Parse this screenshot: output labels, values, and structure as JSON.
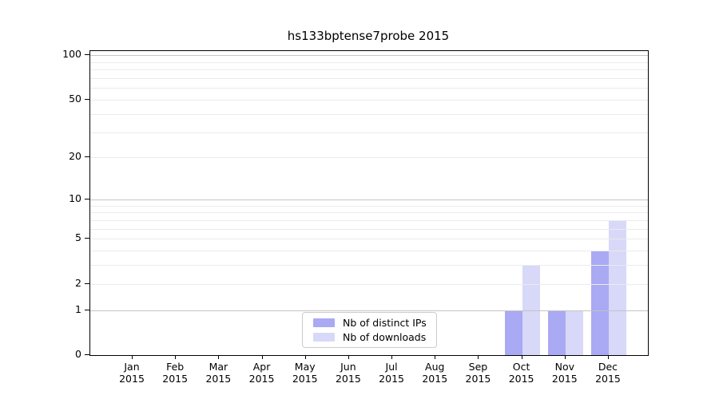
{
  "chart_data": {
    "type": "bar",
    "title": "hs133bptense7probe 2015",
    "categories": [
      {
        "month": "Jan",
        "year": "2015"
      },
      {
        "month": "Feb",
        "year": "2015"
      },
      {
        "month": "Mar",
        "year": "2015"
      },
      {
        "month": "Apr",
        "year": "2015"
      },
      {
        "month": "May",
        "year": "2015"
      },
      {
        "month": "Jun",
        "year": "2015"
      },
      {
        "month": "Jul",
        "year": "2015"
      },
      {
        "month": "Aug",
        "year": "2015"
      },
      {
        "month": "Sep",
        "year": "2015"
      },
      {
        "month": "Oct",
        "year": "2015"
      },
      {
        "month": "Nov",
        "year": "2015"
      },
      {
        "month": "Dec",
        "year": "2015"
      }
    ],
    "series": [
      {
        "name": "Nb of distinct IPs",
        "slug": "distinct-ips",
        "color": "#a9a9f4",
        "values": [
          0,
          0,
          0,
          0,
          0,
          0,
          0,
          0,
          0,
          1,
          1,
          4
        ]
      },
      {
        "name": "Nb of downloads",
        "slug": "downloads",
        "color": "#d8d8f9",
        "values": [
          0,
          0,
          0,
          0,
          0,
          0,
          0,
          0,
          0,
          3,
          1,
          7
        ]
      }
    ],
    "yticks": [
      0,
      1,
      2,
      5,
      10,
      20,
      50,
      100
    ],
    "ylim": [
      0,
      107
    ],
    "xlabel": "",
    "ylabel": "",
    "scale": "log1p",
    "grid": {
      "major_values": [
        1,
        10,
        100
      ],
      "minor_values": [
        2,
        3,
        4,
        5,
        6,
        7,
        8,
        9,
        20,
        30,
        40,
        50,
        60,
        70,
        80,
        90
      ],
      "major_color": "#c4c4c4",
      "minor_color": "#ebebeb"
    },
    "legend": {
      "position": "lower center"
    },
    "colors": {
      "axis": "#000000",
      "text": "#000000",
      "background": "#ffffff"
    }
  }
}
